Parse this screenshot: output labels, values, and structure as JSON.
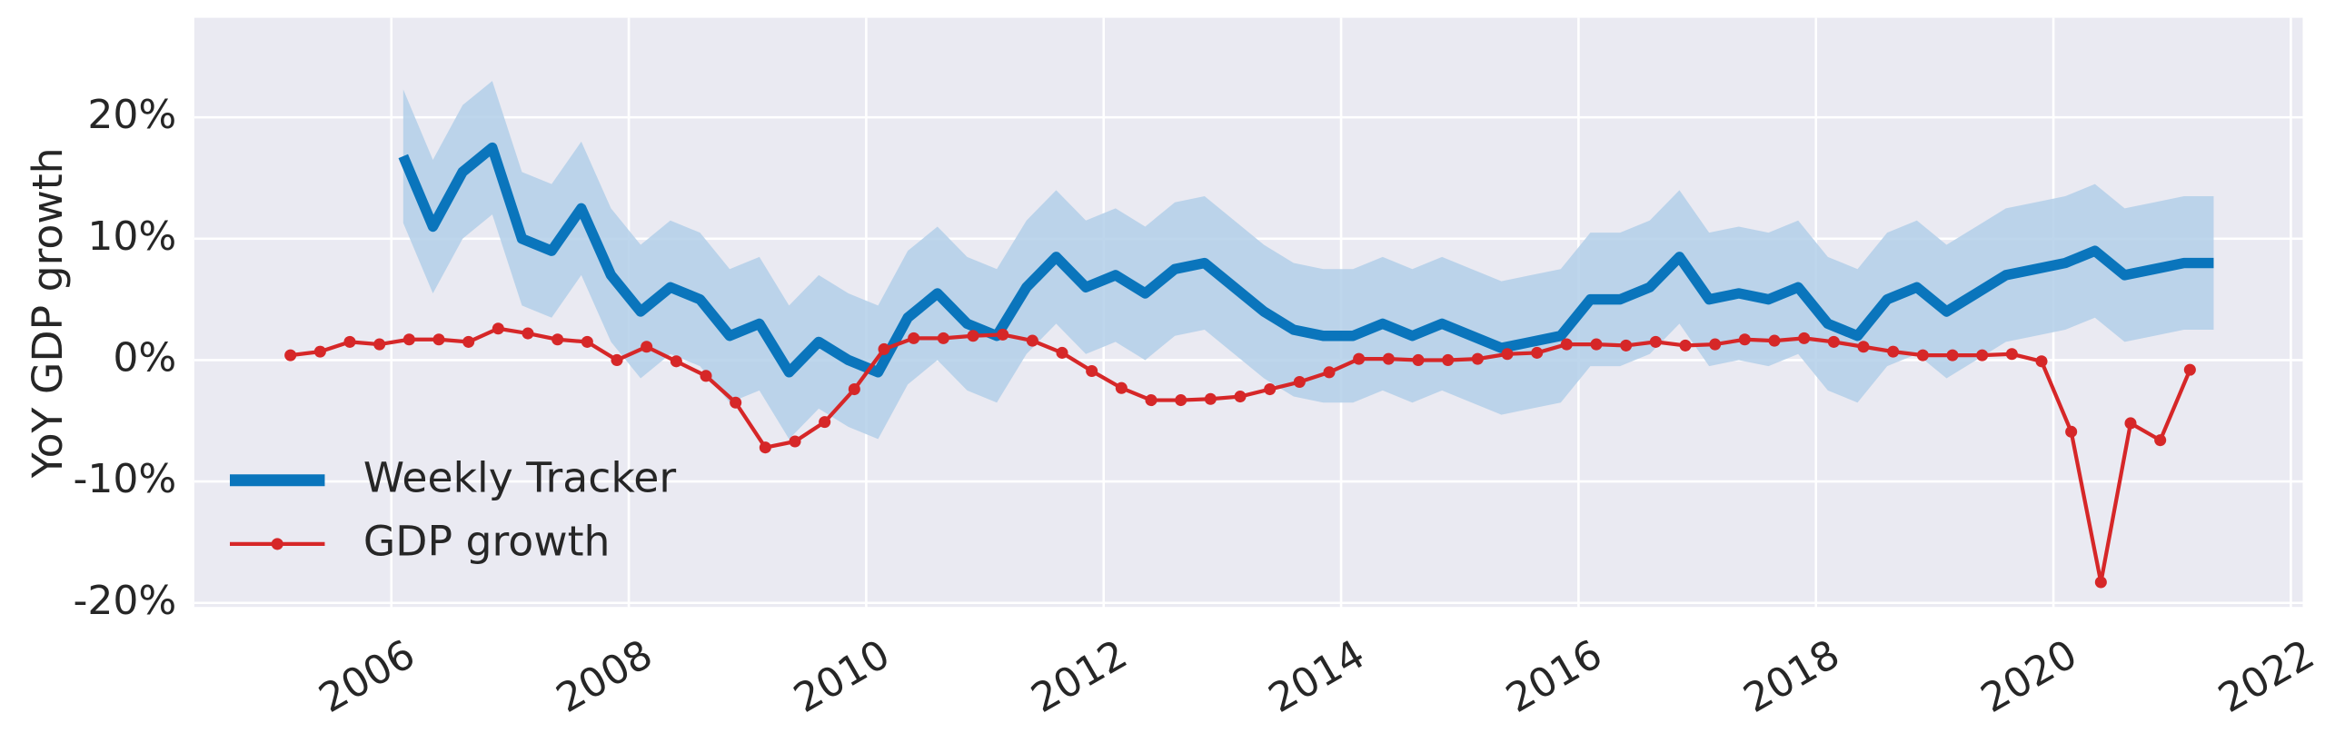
{
  "chart_data": {
    "type": "line",
    "ylabel": "YoY GDP growth",
    "xlim": [
      2004.34,
      2022.1
    ],
    "xticks": [
      2006,
      2008,
      2010,
      2012,
      2014,
      2016,
      2018,
      2020,
      2022
    ],
    "ylim": [
      -20.4,
      28.2
    ],
    "yticks": [
      {
        "value": -20,
        "label": "-20%"
      },
      {
        "value": -10,
        "label": "-10%"
      },
      {
        "value": 0,
        "label": "0%"
      },
      {
        "value": 10,
        "label": "10%"
      },
      {
        "value": 20,
        "label": "20%"
      }
    ],
    "grid": true,
    "background": "#eaeaf2",
    "legend": "lower left",
    "series": [
      {
        "name": "Weekly Tracker",
        "color": "#0a75bc",
        "band_color": "#b3cfe9",
        "x": [
          2006.1,
          2006.35,
          2006.6,
          2006.85,
          2007.1,
          2007.35,
          2007.6,
          2007.85,
          2008.1,
          2008.35,
          2008.6,
          2008.85,
          2009.1,
          2009.35,
          2009.6,
          2009.85,
          2010.1,
          2010.35,
          2010.6,
          2010.85,
          2011.1,
          2011.35,
          2011.6,
          2011.85,
          2012.1,
          2012.35,
          2012.6,
          2012.85,
          2013.1,
          2013.35,
          2013.6,
          2013.85,
          2014.1,
          2014.35,
          2014.6,
          2014.85,
          2015.1,
          2015.35,
          2015.6,
          2015.85,
          2016.1,
          2016.35,
          2016.6,
          2016.85,
          2017.1,
          2017.35,
          2017.6,
          2017.85,
          2018.1,
          2018.35,
          2018.6,
          2018.85,
          2019.1,
          2019.35,
          2019.6,
          2019.85,
          2020.1,
          2020.35,
          2020.6,
          2020.85,
          2021.1,
          2021.35
        ],
        "values": [
          16.8,
          11,
          15.5,
          17.5,
          10,
          9,
          12.5,
          7,
          4,
          6,
          5,
          2,
          3,
          -1,
          1.5,
          0,
          -1,
          3.5,
          5.5,
          3,
          2,
          6,
          8.5,
          6,
          7,
          5.5,
          7.5,
          8,
          6,
          4,
          2.5,
          2,
          2,
          3,
          2,
          3,
          2,
          1,
          1.5,
          2,
          5,
          5,
          6,
          8.5,
          5,
          5.5,
          5,
          6,
          3,
          2,
          5,
          6,
          4,
          5.5,
          7,
          7.5,
          8,
          9,
          7,
          7.5,
          8,
          8
        ],
        "upper": [
          22.3,
          16.5,
          21,
          23,
          15.5,
          14.5,
          18,
          12.5,
          9.5,
          11.5,
          10.5,
          7.5,
          8.5,
          4.5,
          7,
          5.5,
          4.5,
          9,
          11,
          8.5,
          7.5,
          11.5,
          14,
          11.5,
          12.5,
          11,
          13,
          13.5,
          11.5,
          9.5,
          8,
          7.5,
          7.5,
          8.5,
          7.5,
          8.5,
          7.5,
          6.5,
          7,
          7.5,
          10.5,
          10.5,
          11.5,
          14,
          10.5,
          11,
          10.5,
          11.5,
          8.5,
          7.5,
          10.5,
          11.5,
          9.5,
          11,
          12.5,
          13,
          13.5,
          14.5,
          12.5,
          13,
          13.5,
          13.5
        ],
        "lower": [
          11.3,
          5.5,
          10,
          12,
          4.5,
          3.5,
          7,
          1.5,
          -1.5,
          0.5,
          -0.5,
          -3.5,
          -2.5,
          -6.5,
          -4,
          -5.5,
          -6.5,
          -2,
          0,
          -2.5,
          -3.5,
          0.5,
          3,
          0.5,
          1.5,
          0,
          2,
          2.5,
          0.5,
          -1.5,
          -3,
          -3.5,
          -3.5,
          -2.5,
          -3.5,
          -2.5,
          -3.5,
          -4.5,
          -4,
          -3.5,
          -0.5,
          -0.5,
          0.5,
          3,
          -0.5,
          0,
          -0.5,
          0.5,
          -2.5,
          -3.5,
          -0.5,
          0.5,
          -1.5,
          0,
          1.5,
          2,
          2.5,
          3.5,
          1.5,
          2,
          2.5,
          2.5
        ]
      },
      {
        "name": "GDP growth",
        "color": "#d62728",
        "marker": true,
        "x": [
          2005.15,
          2005.4,
          2005.65,
          2005.9,
          2006.15,
          2006.4,
          2006.65,
          2006.9,
          2007.15,
          2007.4,
          2007.65,
          2007.9,
          2008.15,
          2008.4,
          2008.65,
          2008.9,
          2009.15,
          2009.4,
          2009.65,
          2009.9,
          2010.15,
          2010.4,
          2010.65,
          2010.9,
          2011.15,
          2011.4,
          2011.65,
          2011.9,
          2012.15,
          2012.4,
          2012.65,
          2012.9,
          2013.15,
          2013.4,
          2013.65,
          2013.9,
          2014.15,
          2014.4,
          2014.65,
          2014.9,
          2015.15,
          2015.4,
          2015.65,
          2015.9,
          2016.15,
          2016.4,
          2016.65,
          2016.9,
          2017.15,
          2017.4,
          2017.65,
          2017.9,
          2018.15,
          2018.4,
          2018.65,
          2018.9,
          2019.15,
          2019.4,
          2019.65,
          2019.9,
          2020.15,
          2020.4,
          2020.65,
          2020.9,
          2021.15
        ],
        "values": [
          0.4,
          0.7,
          1.5,
          1.3,
          1.7,
          1.7,
          1.5,
          2.6,
          2.2,
          1.7,
          1.5,
          0,
          1.1,
          -0.1,
          -1.3,
          -3.5,
          -7.2,
          -6.7,
          -5.1,
          -2.4,
          0.9,
          1.8,
          1.8,
          2.0,
          2.1,
          1.6,
          0.6,
          -0.9,
          -2.3,
          -3.3,
          -3.3,
          -3.2,
          -3.0,
          -2.4,
          -1.8,
          -1.0,
          0.1,
          0.1,
          0,
          0,
          0.1,
          0.5,
          0.6,
          1.3,
          1.3,
          1.2,
          1.5,
          1.2,
          1.3,
          1.7,
          1.6,
          1.8,
          1.5,
          1.1,
          0.7,
          0.4,
          0.4,
          0.4,
          0.5,
          -0.1,
          -5.9,
          -18.3,
          -5.2,
          -6.6,
          -0.8
        ]
      }
    ]
  }
}
